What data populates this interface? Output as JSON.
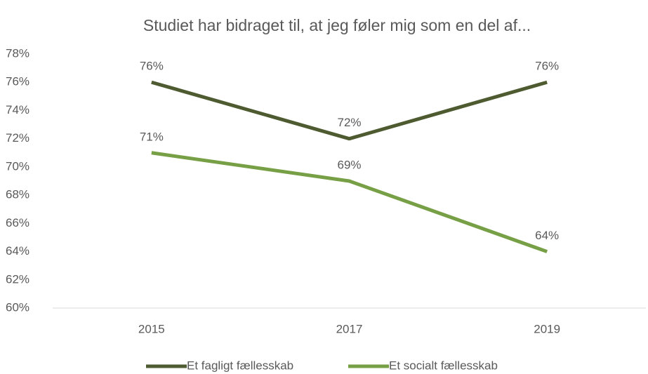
{
  "chart_data": {
    "type": "line",
    "title": "Studiet har bidraget til, at jeg føler mig som en del af...",
    "categories": [
      "2015",
      "2017",
      "2019"
    ],
    "series": [
      {
        "name": "Et fagligt fællesskab",
        "color": "#4e5b31",
        "values": [
          76,
          72,
          76
        ],
        "value_labels": [
          "76%",
          "72%",
          "76%"
        ]
      },
      {
        "name": "Et socialt fællesskab",
        "color": "#77a046",
        "values": [
          71,
          69,
          64
        ],
        "value_labels": [
          "71%",
          "69%",
          "64%"
        ]
      }
    ],
    "ylim": [
      60,
      78
    ],
    "yticks": [
      {
        "value": 60,
        "label": "60%"
      },
      {
        "value": 62,
        "label": "62%"
      },
      {
        "value": 64,
        "label": "64%"
      },
      {
        "value": 66,
        "label": "66%"
      },
      {
        "value": 68,
        "label": "68%"
      },
      {
        "value": 70,
        "label": "70%"
      },
      {
        "value": 72,
        "label": "72%"
      },
      {
        "value": 74,
        "label": "74%"
      },
      {
        "value": 76,
        "label": "76%"
      },
      {
        "value": 78,
        "label": "78%"
      }
    ],
    "grid": false,
    "legend": "bottom"
  }
}
